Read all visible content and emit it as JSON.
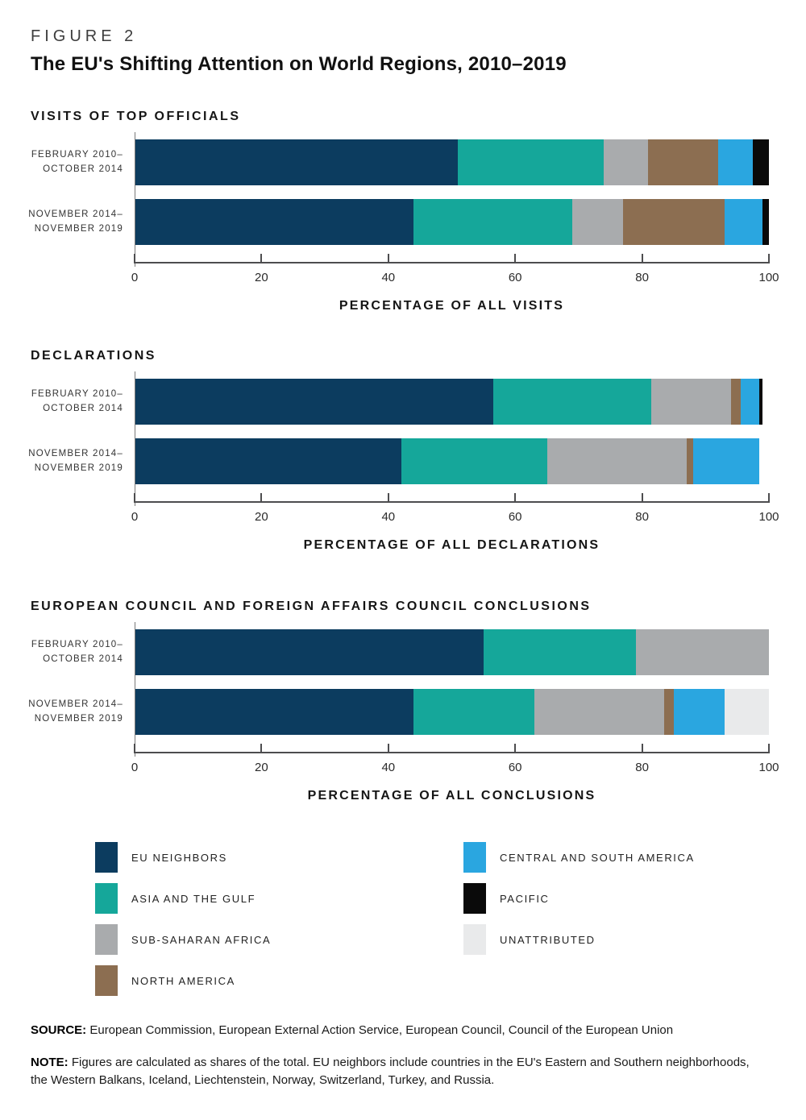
{
  "header": {
    "figure_label": "FIGURE 2",
    "title": "The EU's Shifting Attention on World Regions, 2010–2019"
  },
  "colors": {
    "EU Neighbors": "#0C3C5F",
    "Asia and the Gulf": "#15A79A",
    "Sub-Saharan Africa": "#A9ABAD",
    "North America": "#8C6E51",
    "Central and South America": "#2AA6E0",
    "Pacific": "#0A0A0A",
    "Unattributed": "#E9EAEB"
  },
  "chart_data": [
    {
      "type": "bar",
      "orientation": "horizontal-stacked",
      "title": "VISITS OF TOP OFFICIALS",
      "xlabel": "PERCENTAGE OF ALL VISITS",
      "xlim": [
        0,
        100
      ],
      "x_ticks": [
        0,
        20,
        40,
        60,
        80,
        100
      ],
      "grid": false,
      "unit": "percent",
      "rows": [
        {
          "label": [
            "FEBRUARY 2010–",
            "OCTOBER 2014"
          ],
          "segments": [
            {
              "region": "EU Neighbors",
              "value": 51
            },
            {
              "region": "Asia and the Gulf",
              "value": 23
            },
            {
              "region": "Sub-Saharan Africa",
              "value": 7
            },
            {
              "region": "North America",
              "value": 11
            },
            {
              "region": "Central and South America",
              "value": 5.5
            },
            {
              "region": "Pacific",
              "value": 2.5
            }
          ]
        },
        {
          "label": [
            "NOVEMBER 2014–",
            "NOVEMBER 2019"
          ],
          "segments": [
            {
              "region": "EU Neighbors",
              "value": 44
            },
            {
              "region": "Asia and the Gulf",
              "value": 25
            },
            {
              "region": "Sub-Saharan Africa",
              "value": 8
            },
            {
              "region": "North America",
              "value": 16
            },
            {
              "region": "Central and South America",
              "value": 6
            },
            {
              "region": "Pacific",
              "value": 1
            }
          ]
        }
      ]
    },
    {
      "type": "bar",
      "orientation": "horizontal-stacked",
      "title": "DECLARATIONS",
      "xlabel": "PERCENTAGE OF ALL DECLARATIONS",
      "xlim": [
        0,
        100
      ],
      "x_ticks": [
        0,
        20,
        40,
        60,
        80,
        100
      ],
      "grid": false,
      "unit": "percent",
      "rows": [
        {
          "label": [
            "FEBRUARY 2010–",
            "OCTOBER 2014"
          ],
          "segments": [
            {
              "region": "EU Neighbors",
              "value": 56.5
            },
            {
              "region": "Asia and the Gulf",
              "value": 25
            },
            {
              "region": "Sub-Saharan Africa",
              "value": 12.5
            },
            {
              "region": "North America",
              "value": 1.5
            },
            {
              "region": "Central and South America",
              "value": 3
            },
            {
              "region": "Pacific",
              "value": 0.5
            }
          ]
        },
        {
          "label": [
            "NOVEMBER 2014–",
            "NOVEMBER 2019"
          ],
          "segments": [
            {
              "region": "EU Neighbors",
              "value": 42
            },
            {
              "region": "Asia and the Gulf",
              "value": 23
            },
            {
              "region": "Sub-Saharan Africa",
              "value": 22
            },
            {
              "region": "North America",
              "value": 1
            },
            {
              "region": "Central and South America",
              "value": 10.5
            }
          ]
        }
      ]
    },
    {
      "type": "bar",
      "orientation": "horizontal-stacked",
      "title": "EUROPEAN COUNCIL AND FOREIGN AFFAIRS COUNCIL CONCLUSIONS",
      "xlabel": "PERCENTAGE OF ALL CONCLUSIONS",
      "xlim": [
        0,
        100
      ],
      "x_ticks": [
        0,
        20,
        40,
        60,
        80,
        100
      ],
      "grid": false,
      "unit": "percent",
      "rows": [
        {
          "label": [
            "FEBRUARY 2010–",
            "OCTOBER 2014"
          ],
          "segments": [
            {
              "region": "EU Neighbors",
              "value": 55
            },
            {
              "region": "Asia and the Gulf",
              "value": 24
            },
            {
              "region": "Sub-Saharan Africa",
              "value": 21
            }
          ]
        },
        {
          "label": [
            "NOVEMBER 2014–",
            "NOVEMBER 2019"
          ],
          "segments": [
            {
              "region": "EU Neighbors",
              "value": 44
            },
            {
              "region": "Asia and the Gulf",
              "value": 19
            },
            {
              "region": "Sub-Saharan Africa",
              "value": 20.5
            },
            {
              "region": "North America",
              "value": 1.5
            },
            {
              "region": "Central and South America",
              "value": 8
            },
            {
              "region": "Unattributed",
              "value": 7
            }
          ]
        }
      ]
    }
  ],
  "legend": {
    "position": "bottom",
    "columns": [
      [
        {
          "label": "EU NEIGHBORS",
          "region": "EU Neighbors"
        },
        {
          "label": "ASIA AND THE GULF",
          "region": "Asia and the Gulf"
        },
        {
          "label": "SUB-SAHARAN AFRICA",
          "region": "Sub-Saharan Africa"
        },
        {
          "label": "NORTH AMERICA",
          "region": "North America"
        }
      ],
      [
        {
          "label": "CENTRAL AND SOUTH AMERICA",
          "region": "Central and South America"
        },
        {
          "label": "PACIFIC",
          "region": "Pacific"
        },
        {
          "label": "UNATTRIBUTED",
          "region": "Unattributed"
        }
      ]
    ]
  },
  "source": {
    "label": "SOURCE:",
    "text": "European Commission, European External Action Service, European Council, Council of the European Union"
  },
  "note": {
    "label": "NOTE:",
    "text": "Figures are calculated as shares of the total. EU neighbors include countries in the EU's Eastern and Southern neighborhoods, the Western Balkans, Iceland, Liechtenstein, Norway, Switzerland, Turkey, and Russia."
  }
}
